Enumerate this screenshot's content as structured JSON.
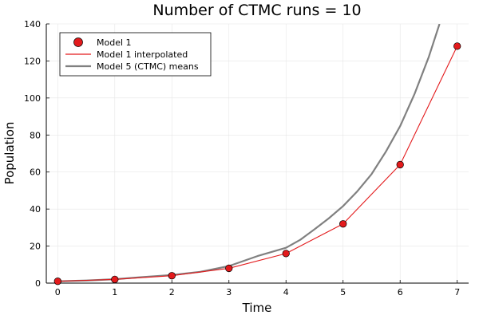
{
  "chart_data": {
    "type": "line",
    "title": "Number of CTMC runs = 10",
    "xlabel": "Time",
    "ylabel": "Population",
    "xlim": [
      -0.2,
      7.2
    ],
    "ylim": [
      0,
      140
    ],
    "xticks": [
      0,
      1,
      2,
      3,
      4,
      5,
      6,
      7
    ],
    "yticks": [
      0,
      20,
      40,
      60,
      80,
      100,
      120,
      140
    ],
    "grid": true,
    "legend_position": "top-left",
    "series": [
      {
        "name": "Model 1",
        "kind": "scatter",
        "color": "#e31a1c",
        "x": [
          0,
          1,
          2,
          3,
          4,
          5,
          6,
          7
        ],
        "y": [
          1,
          2,
          4,
          8,
          16,
          32,
          64,
          128
        ]
      },
      {
        "name": "Model 1 interpolated",
        "kind": "line",
        "color": "#e31a1c",
        "x": [
          0,
          1,
          2,
          3,
          4,
          5,
          6,
          7
        ],
        "y": [
          1,
          2,
          4,
          8,
          16,
          32,
          64,
          128
        ]
      },
      {
        "name": "Model 5 (CTMC) means",
        "kind": "line",
        "color": "#808080",
        "x": [
          0,
          0.5,
          1,
          1.5,
          2,
          2.5,
          3,
          3.5,
          4,
          4.25,
          4.5,
          4.75,
          5,
          5.25,
          5.5,
          5.75,
          6,
          6.25,
          6.5,
          6.69
        ],
        "y": [
          1,
          1.4,
          2.1,
          3.3,
          4.4,
          6.1,
          9.2,
          14.6,
          19.1,
          23.4,
          29.1,
          35.0,
          41.6,
          49.6,
          58.9,
          71.0,
          84.8,
          102.0,
          122.0,
          140.0
        ]
      }
    ]
  }
}
